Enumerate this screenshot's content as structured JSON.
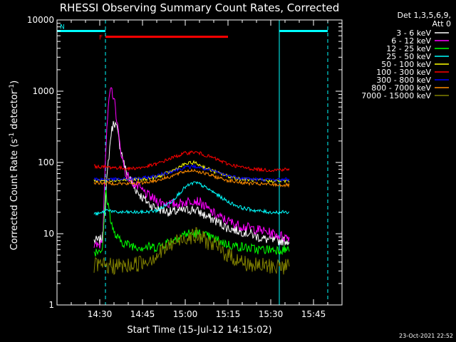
{
  "chart_data": {
    "type": "line",
    "title": "RHESSI Observing Summary Count Rates, Corrected",
    "xlabel": "Start Time (15-Jul-12 14:15:02)",
    "ylabel_main": "Corrected Count Rate (s",
    "ylabel_sup1": "-1",
    "ylabel_mid": " detector",
    "ylabel_sup2": "-1",
    "ylabel_end": ")",
    "y_scale": "log",
    "ylim": [
      1,
      10000
    ],
    "xlim_minutes": [
      0,
      100
    ],
    "x_ticks": [
      {
        "m": 15,
        "label": "14:30"
      },
      {
        "m": 30,
        "label": "14:45"
      },
      {
        "m": 45,
        "label": "15:00"
      },
      {
        "m": 60,
        "label": "15:15"
      },
      {
        "m": 75,
        "label": "15:30"
      },
      {
        "m": 90,
        "label": "15:45"
      }
    ],
    "y_ticks": [
      {
        "v": 1,
        "label": "1"
      },
      {
        "v": 10,
        "label": "10"
      },
      {
        "v": 100,
        "label": "100"
      },
      {
        "v": 1000,
        "label": "1000"
      },
      {
        "v": 10000,
        "label": "10000"
      }
    ],
    "legend_header": [
      "Det 1,3,5,6,9,",
      "Att 0"
    ],
    "legend_placement": "right",
    "flags": [
      {
        "label": "N",
        "color": "#00ffff",
        "start": 0,
        "end": 17,
        "level": 7000
      },
      {
        "label": "F",
        "color": "#ff0000",
        "start": 17,
        "end": 60,
        "level": 5800
      },
      {
        "label": "",
        "color": "#00ffff",
        "start": 78,
        "end": 95,
        "level": 7000
      }
    ],
    "vlines": [
      {
        "m": 0,
        "style": "solid",
        "color": "#00ffff"
      },
      {
        "m": 17,
        "style": "dashed",
        "color": "#00ffff"
      },
      {
        "m": 78,
        "style": "solid",
        "color": "#00ffff"
      },
      {
        "m": 95,
        "style": "dashed",
        "color": "#00ffff"
      }
    ],
    "timestamp": "23-Oct-2021 22:52",
    "series": [
      {
        "name": "3 - 6 keV",
        "color": "#ffffff",
        "x": [
          13,
          15,
          16,
          17,
          18,
          19,
          20,
          21,
          22,
          24,
          27,
          30,
          33,
          36,
          40,
          44,
          48,
          50,
          53,
          56,
          60,
          64,
          68,
          72,
          76,
          80,
          81.5
        ],
        "y": [
          8,
          8,
          9,
          30,
          100,
          260,
          380,
          300,
          180,
          80,
          45,
          32,
          25,
          22,
          20,
          21,
          22,
          20,
          17,
          15,
          12,
          11,
          10,
          8.5,
          8,
          8,
          8
        ]
      },
      {
        "name": "6 - 12 keV",
        "color": "#ff00ff",
        "x": [
          13,
          15,
          16,
          17,
          18,
          19,
          20,
          21,
          22,
          24,
          27,
          30,
          33,
          36,
          40,
          44,
          48,
          50,
          53,
          56,
          60,
          64,
          68,
          72,
          76,
          80,
          81.5
        ],
        "y": [
          6.5,
          7,
          9,
          120,
          600,
          1100,
          800,
          400,
          180,
          70,
          50,
          40,
          32,
          28,
          26,
          27,
          30,
          28,
          22,
          18,
          15,
          13,
          12,
          11,
          10,
          9,
          9
        ]
      },
      {
        "name": "12 - 25 keV",
        "color": "#00ff00",
        "x": [
          13,
          15,
          16,
          17,
          18,
          19,
          20,
          22,
          25,
          30,
          35,
          40,
          45,
          50,
          55,
          60,
          65,
          70,
          75,
          80,
          81.5
        ],
        "y": [
          5.5,
          6,
          6,
          40,
          25,
          15,
          10,
          8,
          7,
          6.5,
          6.5,
          8,
          10,
          10,
          8.5,
          7,
          6.5,
          6,
          6,
          6,
          6
        ]
      },
      {
        "name": "25 - 50 keV",
        "color": "#00ffff",
        "x": [
          13,
          15,
          16,
          17,
          18,
          19,
          20,
          25,
          30,
          35,
          40,
          45,
          48,
          50,
          55,
          60,
          65,
          70,
          75,
          80,
          81.5
        ],
        "y": [
          19,
          19,
          20,
          21,
          22,
          21,
          20,
          20,
          20,
          21,
          28,
          45,
          52,
          50,
          38,
          28,
          23,
          21,
          20,
          20,
          20
        ]
      },
      {
        "name": "50 - 100 keV",
        "color": "#ffff00",
        "x": [
          13,
          20,
          25,
          30,
          35,
          40,
          45,
          48,
          50,
          55,
          60,
          65,
          70,
          75,
          80,
          81.5
        ],
        "y": [
          56,
          57,
          57,
          58,
          62,
          75,
          95,
          100,
          92,
          75,
          64,
          58,
          56,
          55,
          55,
          55
        ]
      },
      {
        "name": "100 - 300 keV",
        "color": "#ff0000",
        "x": [
          13,
          20,
          25,
          30,
          35,
          40,
          45,
          48,
          50,
          55,
          60,
          65,
          70,
          75,
          80,
          81.5
        ],
        "y": [
          88,
          85,
          82,
          85,
          95,
          115,
          135,
          140,
          135,
          115,
          95,
          85,
          80,
          78,
          80,
          80
        ]
      },
      {
        "name": "300 - 800 keV",
        "color": "#0000ff",
        "x": [
          13,
          20,
          25,
          30,
          35,
          40,
          45,
          48,
          50,
          55,
          60,
          65,
          70,
          75,
          80,
          81.5
        ],
        "y": [
          58,
          58,
          58,
          60,
          65,
          75,
          85,
          88,
          85,
          75,
          65,
          60,
          58,
          57,
          58,
          58
        ]
      },
      {
        "name": "800 - 7000 keV",
        "color": "#ff8c00",
        "x": [
          13,
          20,
          25,
          30,
          35,
          40,
          45,
          48,
          50,
          55,
          60,
          65,
          70,
          75,
          80,
          81.5
        ],
        "y": [
          52,
          51,
          50,
          52,
          56,
          64,
          75,
          78,
          74,
          64,
          56,
          52,
          50,
          49,
          48,
          48
        ]
      },
      {
        "name": "7000 - 15000 keV",
        "color": "#808000",
        "x": [
          13,
          15,
          20,
          25,
          30,
          35,
          40,
          45,
          48,
          50,
          55,
          60,
          65,
          70,
          75,
          80,
          81.5
        ],
        "y": [
          3.5,
          3.5,
          3.5,
          3.5,
          4,
          5,
          7,
          9,
          9.5,
          9,
          7,
          5,
          4,
          3.5,
          3.5,
          3.5,
          3.5
        ]
      }
    ]
  }
}
